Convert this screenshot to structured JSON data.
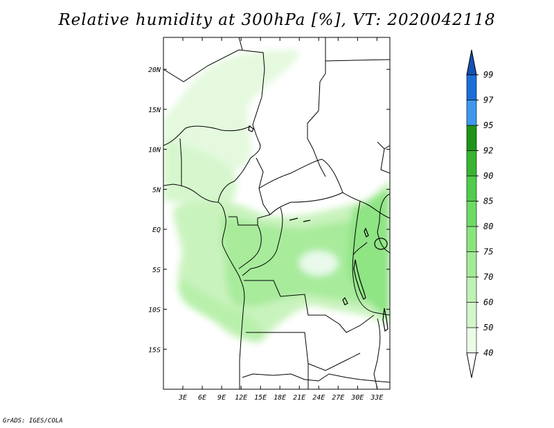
{
  "title": "Relative humidity at 300hPa [%], VT: 2020042118",
  "credit": "GrADS: IGES/COLA",
  "map": {
    "region": "Central Africa",
    "lon_range": [
      0,
      35
    ],
    "lat_range": [
      -20,
      24
    ],
    "x_ticks": [
      "3E",
      "6E",
      "9E",
      "12E",
      "15E",
      "18E",
      "21E",
      "24E",
      "27E",
      "30E",
      "33E"
    ],
    "y_ticks": [
      "20N",
      "15N",
      "10N",
      "5N",
      "EQ",
      "5S",
      "10S",
      "15S"
    ]
  },
  "colorbar": {
    "levels": [
      "40",
      "50",
      "60",
      "70",
      "75",
      "80",
      "85",
      "90",
      "92",
      "95",
      "97",
      "99"
    ],
    "colors": [
      "#ffffff",
      "#eafbe6",
      "#d3f6cb",
      "#bff2b4",
      "#a4eb98",
      "#8ae47e",
      "#6fdb66",
      "#52cc4c",
      "#39b432",
      "#1f9418",
      "#3d98ee",
      "#1e6ed8",
      "#1451b3"
    ]
  }
}
